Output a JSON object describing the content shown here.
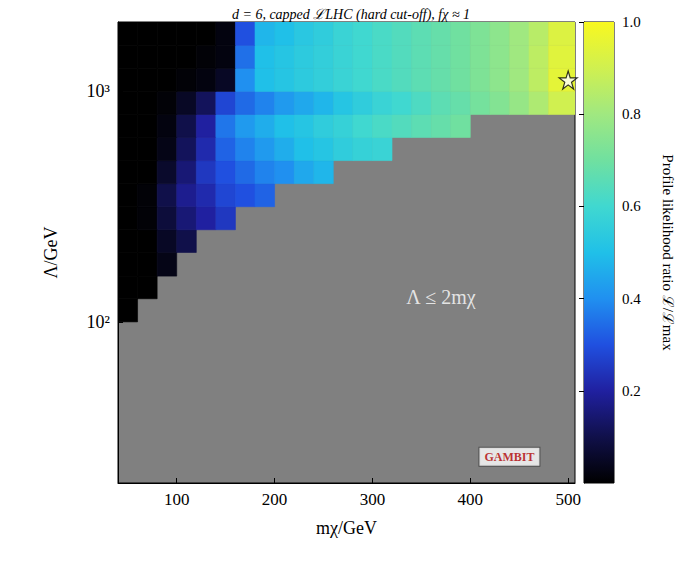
{
  "chart_data": {
    "type": "heatmap",
    "title": "d = 6, capped ℒLHC (hard cut-off), fχ ≈ 1",
    "x_label": "mχ/GeV",
    "y_label": "Λ/GeV",
    "log": "y",
    "xlim": [
      40,
      507
    ],
    "ylim": [
      20,
      2000
    ],
    "xticks": [
      100,
      200,
      300,
      400,
      500
    ],
    "yticks": [
      {
        "value": 100,
        "label": "10²"
      },
      {
        "value": 1000,
        "label": "10³"
      }
    ],
    "x_edges": [
      40,
      60,
      80,
      100,
      120,
      140,
      160,
      180,
      200,
      220,
      240,
      260,
      280,
      300,
      320,
      340,
      360,
      380,
      400,
      420,
      440,
      460,
      480,
      507
    ],
    "y_edges": [
      20,
      25,
      32,
      40,
      50,
      63,
      80,
      100,
      126,
      158,
      200,
      251,
      316,
      398,
      501,
      631,
      794,
      1000,
      1259,
      1585,
      2000
    ],
    "cells": [
      [
        null,
        null,
        null,
        null,
        null,
        null,
        null,
        null,
        null,
        null,
        null,
        null,
        null,
        null,
        null,
        null,
        null,
        null,
        null,
        null,
        null,
        null,
        null
      ],
      [
        null,
        null,
        null,
        null,
        null,
        null,
        null,
        null,
        null,
        null,
        null,
        null,
        null,
        null,
        null,
        null,
        null,
        null,
        null,
        null,
        null,
        null,
        null
      ],
      [
        null,
        null,
        null,
        null,
        null,
        null,
        null,
        null,
        null,
        null,
        null,
        null,
        null,
        null,
        null,
        null,
        null,
        null,
        null,
        null,
        null,
        null,
        null
      ],
      [
        null,
        null,
        null,
        null,
        null,
        null,
        null,
        null,
        null,
        null,
        null,
        null,
        null,
        null,
        null,
        null,
        null,
        null,
        null,
        null,
        null,
        null,
        null
      ],
      [
        null,
        null,
        null,
        null,
        null,
        null,
        null,
        null,
        null,
        null,
        null,
        null,
        null,
        null,
        null,
        null,
        null,
        null,
        null,
        null,
        null,
        null,
        null
      ],
      [
        null,
        null,
        null,
        null,
        null,
        null,
        null,
        null,
        null,
        null,
        null,
        null,
        null,
        null,
        null,
        null,
        null,
        null,
        null,
        null,
        null,
        null,
        null
      ],
      [
        null,
        null,
        null,
        null,
        null,
        null,
        null,
        null,
        null,
        null,
        null,
        null,
        null,
        null,
        null,
        null,
        null,
        null,
        null,
        null,
        null,
        null,
        null
      ],
      [
        0.0,
        null,
        null,
        null,
        null,
        null,
        null,
        null,
        null,
        null,
        null,
        null,
        null,
        null,
        null,
        null,
        null,
        null,
        null,
        null,
        null,
        null,
        null
      ],
      [
        0.0,
        0.0,
        null,
        null,
        null,
        null,
        null,
        null,
        null,
        null,
        null,
        null,
        null,
        null,
        null,
        null,
        null,
        null,
        null,
        null,
        null,
        null,
        null
      ],
      [
        0.0,
        0.0,
        0.03,
        null,
        null,
        null,
        null,
        null,
        null,
        null,
        null,
        null,
        null,
        null,
        null,
        null,
        null,
        null,
        null,
        null,
        null,
        null,
        null
      ],
      [
        0.0,
        0.0,
        0.05,
        0.1,
        null,
        null,
        null,
        null,
        null,
        null,
        null,
        null,
        null,
        null,
        null,
        null,
        null,
        null,
        null,
        null,
        null,
        null,
        null
      ],
      [
        0.0,
        0.01,
        0.08,
        0.15,
        0.2,
        0.25,
        null,
        null,
        null,
        null,
        null,
        null,
        null,
        null,
        null,
        null,
        null,
        null,
        null,
        null,
        null,
        null,
        null
      ],
      [
        0.0,
        0.01,
        0.1,
        0.18,
        0.22,
        0.28,
        0.3,
        0.33,
        null,
        null,
        null,
        null,
        null,
        null,
        null,
        null,
        null,
        null,
        null,
        null,
        null,
        null,
        null
      ],
      [
        0.0,
        0.0,
        0.06,
        0.15,
        0.25,
        0.3,
        0.34,
        0.38,
        0.4,
        0.45,
        0.48,
        null,
        null,
        null,
        null,
        null,
        null,
        null,
        null,
        null,
        null,
        null,
        null
      ],
      [
        0.0,
        0.0,
        0.03,
        0.12,
        0.22,
        0.33,
        0.38,
        0.42,
        0.46,
        0.5,
        0.52,
        0.55,
        0.57,
        0.58,
        null,
        null,
        null,
        null,
        null,
        null,
        null,
        null,
        null
      ],
      [
        0.0,
        0.0,
        0.02,
        0.1,
        0.2,
        0.36,
        0.42,
        0.46,
        0.5,
        0.52,
        0.55,
        0.57,
        0.6,
        0.62,
        0.64,
        0.66,
        0.68,
        0.7,
        null,
        null,
        null,
        null,
        null
      ],
      [
        0.0,
        0.0,
        0.01,
        0.05,
        0.12,
        0.28,
        0.34,
        0.38,
        0.42,
        0.45,
        0.48,
        0.52,
        0.55,
        0.58,
        0.6,
        0.63,
        0.66,
        0.68,
        0.71,
        0.74,
        0.78,
        0.83,
        0.9
      ],
      [
        0.0,
        0.0,
        0.0,
        0.01,
        0.02,
        0.05,
        0.4,
        0.5,
        0.52,
        0.54,
        0.56,
        0.58,
        0.6,
        0.62,
        0.64,
        0.66,
        0.68,
        0.7,
        0.73,
        0.76,
        0.8,
        0.86,
        0.95
      ],
      [
        0.0,
        0.0,
        0.0,
        0.0,
        0.01,
        0.02,
        0.35,
        0.5,
        0.52,
        0.54,
        0.56,
        0.58,
        0.6,
        0.62,
        0.64,
        0.66,
        0.68,
        0.7,
        0.73,
        0.76,
        0.8,
        0.86,
        0.94
      ],
      [
        0.0,
        0.0,
        0.0,
        0.0,
        0.0,
        0.02,
        0.3,
        0.48,
        0.5,
        0.53,
        0.55,
        0.58,
        0.6,
        0.62,
        0.64,
        0.66,
        0.68,
        0.7,
        0.73,
        0.76,
        0.8,
        0.85,
        0.93
      ]
    ],
    "colorbar": {
      "label": "Profile likelihood ratio ℒ/ℒmax",
      "range": [
        0,
        1
      ],
      "ticks": [
        0.2,
        0.4,
        0.6,
        0.8,
        {
          "value": 1,
          "label": "1.0"
        }
      ]
    },
    "best_fit": {
      "x": 500,
      "y": 1120,
      "marker": "star"
    },
    "annotations": [
      {
        "text": "Λ ≤ 2mχ",
        "x": 370,
        "y": 128
      },
      {
        "text": "GAMBIT",
        "x": 440,
        "y": 26
      }
    ]
  }
}
